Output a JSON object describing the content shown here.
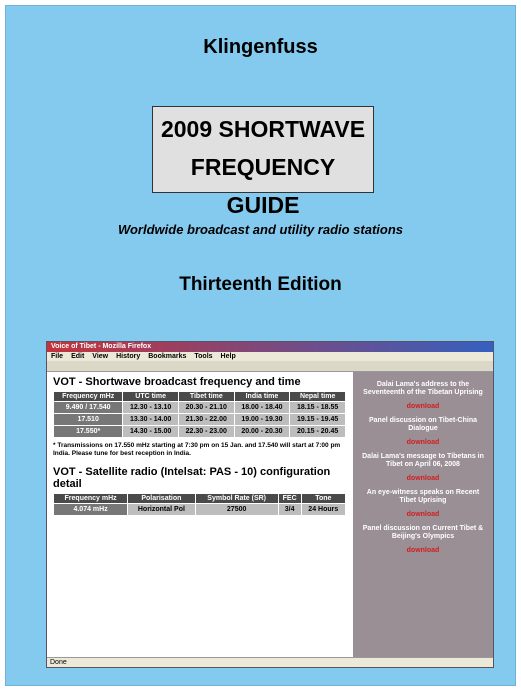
{
  "cover": {
    "publisher": "Klingenfuss",
    "title_lines": [
      "2009 SHORTWAVE",
      "FREQUENCY GUIDE"
    ],
    "subtitle": "Worldwide broadcast and utility radio stations",
    "edition": "Thirteenth Edition"
  },
  "screenshot": {
    "window_title": "Voice of Tibet - Mozilla Firefox",
    "menu": [
      "File",
      "Edit",
      "View",
      "History",
      "Bookmarks",
      "Tools",
      "Help"
    ],
    "section1": {
      "heading": "VOT - Shortwave broadcast frequency and time",
      "headers": [
        "Frequency mHz",
        "UTC time",
        "Tibet time",
        "India time",
        "Nepal time"
      ],
      "rows": [
        [
          "9.490 / 17.540",
          "12.30 - 13.10",
          "20.30 - 21.10",
          "18.00 - 18.40",
          "18.15 - 18.55"
        ],
        [
          "17.510",
          "13.30 - 14.00",
          "21.30 - 22.00",
          "19.00 - 19.30",
          "19.15 - 19.45"
        ],
        [
          "17.550*",
          "14.30 - 15.00",
          "22.30 - 23.00",
          "20.00 - 20.30",
          "20.15 - 20.45"
        ]
      ],
      "note": "* Transmissions on 17.550 mHz starting at 7:30 pm on 15 Jan. and 17.540 will start at 7:00 pm India. Please tune for best reception in India."
    },
    "section2": {
      "heading": "VOT - Satellite radio (Intelsat: PAS - 10) configuration detail",
      "headers": [
        "Frequency mHz",
        "Polarisation",
        "Symbol Rate (SR)",
        "FEC",
        "Tone"
      ],
      "rows": [
        [
          "4.074 mHz",
          "Horizontal Pol",
          "27500",
          "3/4",
          "24 Hours"
        ]
      ]
    },
    "sidebar": [
      {
        "text": "Dalai Lama's address to the Seventeenth of the Tibetan Uprising",
        "link": "download"
      },
      {
        "text": "Panel discussion on Tibet-China Dialogue",
        "link": "download"
      },
      {
        "text": "Dalai Lama's message to Tibetans in Tibet on April 06, 2008",
        "link": "download"
      },
      {
        "text": "An eye-witness speaks on Recent Tibet Uprising",
        "link": "download"
      },
      {
        "text": "Panel discussion on Current Tibet & Beijing's Olympics",
        "link": "download"
      }
    ],
    "status": "Done"
  }
}
